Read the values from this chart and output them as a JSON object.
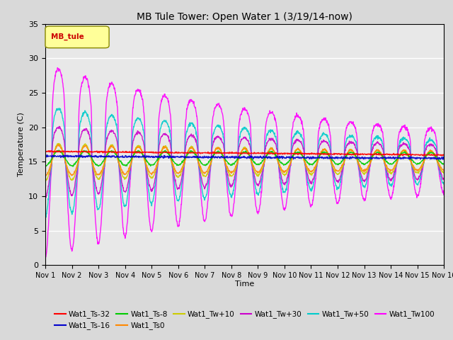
{
  "title": "MB Tule Tower: Open Water 1 (3/19/14-now)",
  "xlabel": "Time",
  "ylabel": "Temperature (C)",
  "ylim": [
    0,
    35
  ],
  "yticks": [
    0,
    5,
    10,
    15,
    20,
    25,
    30,
    35
  ],
  "xtick_positions": [
    0,
    1,
    2,
    3,
    4,
    5,
    6,
    7,
    8,
    9,
    10,
    11,
    12,
    13,
    14,
    15
  ],
  "xtick_labels": [
    "Nov 1",
    "Nov 2",
    "Nov 3",
    "Nov 4",
    "Nov 5",
    "Nov 6",
    "Nov 7",
    "Nov 8",
    "Nov 9",
    "Nov 10",
    "Nov 11",
    "Nov 12",
    "Nov 13",
    "Nov 14",
    "Nov 15",
    "Nov 16"
  ],
  "legend_label": "MB_tule",
  "series": [
    {
      "name": "Wat1_Ts-32",
      "color": "#ff0000",
      "lw": 1.0,
      "base": 16.5,
      "amp": 0.5,
      "decay_rate": 0.01,
      "min_amp": 0.2
    },
    {
      "name": "Wat1_Ts-16",
      "color": "#0000cc",
      "lw": 1.0,
      "base": 15.8,
      "amp": 0.8,
      "decay_rate": 0.02,
      "min_amp": 0.3
    },
    {
      "name": "Wat1_Ts-8",
      "color": "#00cc00",
      "lw": 1.0,
      "base": 15.5,
      "amp": 1.2,
      "decay_rate": 0.03,
      "min_amp": 0.4
    },
    {
      "name": "Wat1_Ts0",
      "color": "#ff8800",
      "lw": 1.0,
      "base": 15.2,
      "amp": 2.0,
      "decay_rate": 0.04,
      "min_amp": 0.5
    },
    {
      "name": "Wat1_Tw+10",
      "color": "#cccc00",
      "lw": 1.0,
      "base": 15.0,
      "amp": 2.5,
      "decay_rate": 0.05,
      "min_amp": 0.6
    },
    {
      "name": "Wat1_Tw+30",
      "color": "#cc00cc",
      "lw": 1.0,
      "base": 15.0,
      "amp": 4.5,
      "decay_rate": 0.06,
      "min_amp": 0.7
    },
    {
      "name": "Wat1_Tw+50",
      "color": "#00cccc",
      "lw": 1.0,
      "base": 15.0,
      "amp": 7.0,
      "decay_rate": 0.08,
      "min_amp": 1.0
    },
    {
      "name": "Wat1_Tw100",
      "color": "#ff00ff",
      "lw": 1.0,
      "base": 15.0,
      "amp": 12.0,
      "decay_rate": 0.1,
      "min_amp": 2.0
    }
  ],
  "bg_color": "#d9d9d9",
  "plot_bg": "#e8e8e8"
}
